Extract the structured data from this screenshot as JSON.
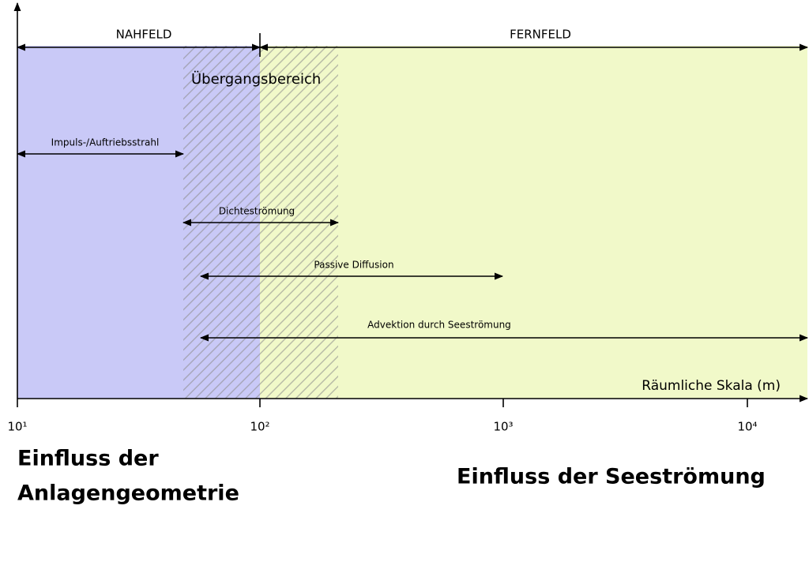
{
  "zones": {
    "near": "NAHFELD",
    "far": "FERNFELD",
    "transition": "Übergangsbereich"
  },
  "processes": [
    "Impuls-/Auftriebsstrahl",
    "Dichteströmung",
    "Passive Diffusion",
    "Advektion durch Seeströmung"
  ],
  "axis": {
    "label": "Räumliche Skala (m)",
    "ticks": [
      "10¹",
      "10²",
      "10³",
      "10⁴"
    ]
  },
  "influences": {
    "left": [
      "Einfluss der",
      "Anlagengeometrie"
    ],
    "right": "Einfluss der Seeströmung"
  }
}
